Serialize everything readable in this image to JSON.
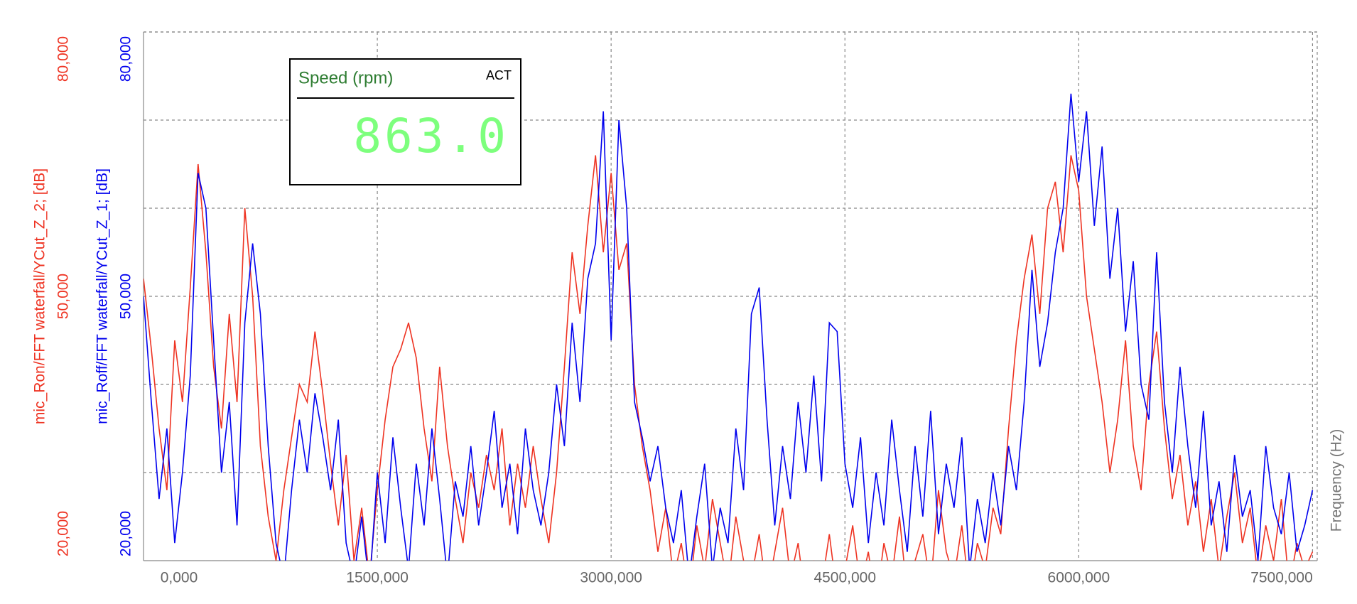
{
  "chart_data": {
    "type": "line",
    "xlabel": "Frequency (Hz)",
    "ylabel": "mic_Roff/FFT waterfall/YCut_Z_1; [dB]",
    "y2label": "mic_Ron/FFT waterfall/YCut_Z_2; [dB]",
    "xlim": [
      0,
      7530
    ],
    "xticks": [
      {
        "value": 0,
        "label": "0,000"
      },
      {
        "value": 1500,
        "label": "1500,000"
      },
      {
        "value": 3000,
        "label": "3000,000"
      },
      {
        "value": 4500,
        "label": "4500,000"
      },
      {
        "value": 6000,
        "label": "6000,000"
      },
      {
        "value": 7500,
        "label": "7500,000"
      }
    ],
    "ylim": [
      20,
      80
    ],
    "yticks": [
      {
        "value": 20,
        "label": "20,000"
      },
      {
        "value": 50,
        "label": "50,000"
      },
      {
        "value": 80,
        "label": "80,000"
      }
    ],
    "y2lim": [
      20,
      80
    ],
    "y2ticks": [
      {
        "value": 20,
        "label": "20,000"
      },
      {
        "value": 50,
        "label": "50,000"
      },
      {
        "value": 80,
        "label": "80,000"
      }
    ],
    "ygrid": [
      20,
      30,
      40,
      50,
      60,
      70,
      80
    ],
    "grid": true,
    "ycolor": "#0000ee",
    "y2color": "#ee3322",
    "x": [
      0,
      50,
      100,
      150,
      200,
      250,
      300,
      350,
      400,
      450,
      500,
      550,
      600,
      650,
      700,
      750,
      800,
      850,
      900,
      950,
      1000,
      1050,
      1100,
      1150,
      1200,
      1250,
      1300,
      1350,
      1400,
      1450,
      1500,
      1550,
      1600,
      1650,
      1700,
      1750,
      1800,
      1850,
      1900,
      1950,
      2000,
      2050,
      2100,
      2150,
      2200,
      2250,
      2300,
      2350,
      2400,
      2450,
      2500,
      2550,
      2600,
      2650,
      2700,
      2750,
      2800,
      2850,
      2900,
      2950,
      3000,
      3050,
      3100,
      3150,
      3200,
      3250,
      3300,
      3350,
      3400,
      3450,
      3500,
      3550,
      3600,
      3650,
      3700,
      3750,
      3800,
      3850,
      3900,
      3950,
      4000,
      4050,
      4100,
      4150,
      4200,
      4250,
      4300,
      4350,
      4400,
      4450,
      4500,
      4550,
      4600,
      4650,
      4700,
      4750,
      4800,
      4850,
      4900,
      4950,
      5000,
      5050,
      5100,
      5150,
      5200,
      5250,
      5300,
      5350,
      5400,
      5450,
      5500,
      5550,
      5600,
      5650,
      5700,
      5750,
      5800,
      5850,
      5900,
      5950,
      6000,
      6050,
      6100,
      6150,
      6200,
      6250,
      6300,
      6350,
      6400,
      6450,
      6500,
      6550,
      6600,
      6650,
      6700,
      6750,
      6800,
      6850,
      6900,
      6950,
      7000,
      7050,
      7100,
      7150,
      7200,
      7250,
      7300,
      7350,
      7400,
      7450,
      7500
    ],
    "series": [
      {
        "color": "#ee3322",
        "axis": "y2",
        "values": [
          52,
          44,
          35,
          28,
          45,
          38,
          51,
          65,
          55,
          42,
          35,
          48,
          38,
          60,
          50,
          33,
          25,
          20,
          28,
          34,
          40,
          38,
          46,
          39,
          31,
          24,
          32,
          20,
          26,
          18,
          28,
          36,
          42,
          44,
          47,
          43,
          35,
          29,
          42,
          33,
          27,
          22,
          30,
          26,
          32,
          28,
          35,
          24,
          31,
          26,
          33,
          27,
          22,
          30,
          42,
          55,
          48,
          58,
          66,
          55,
          64,
          53,
          56,
          40,
          33,
          28,
          21,
          26,
          18,
          22,
          16,
          24,
          19,
          27,
          22,
          17,
          25,
          20,
          18,
          23,
          16,
          21,
          26,
          18,
          22,
          15,
          20,
          17,
          23,
          16,
          19,
          24,
          17,
          21,
          15,
          22,
          18,
          25,
          16,
          20,
          23,
          17,
          28,
          21,
          18,
          24,
          16,
          22,
          19,
          26,
          23,
          35,
          45,
          52,
          57,
          48,
          60,
          63,
          55,
          66,
          62,
          50,
          44,
          38,
          30,
          36,
          45,
          33,
          28,
          40,
          46,
          35,
          27,
          32,
          24,
          29,
          21,
          27,
          19,
          25,
          30,
          22,
          26,
          18,
          24,
          20,
          27,
          17,
          22,
          19,
          21
        ]
      },
      {
        "color": "#0000ee",
        "axis": "y",
        "values": [
          50,
          38,
          27,
          35,
          22,
          30,
          41,
          64,
          60,
          45,
          30,
          38,
          24,
          47,
          56,
          48,
          33,
          22,
          18,
          28,
          36,
          30,
          39,
          34,
          28,
          36,
          22,
          18,
          25,
          17,
          30,
          22,
          34,
          26,
          19,
          31,
          24,
          35,
          27,
          18,
          29,
          25,
          33,
          24,
          30,
          37,
          26,
          31,
          23,
          35,
          28,
          24,
          30,
          40,
          33,
          47,
          38,
          52,
          56,
          71,
          45,
          70,
          60,
          38,
          34,
          29,
          33,
          26,
          22,
          28,
          18,
          25,
          31,
          19,
          26,
          22,
          35,
          28,
          48,
          51,
          36,
          24,
          33,
          27,
          38,
          30,
          41,
          29,
          47,
          46,
          31,
          26,
          34,
          22,
          30,
          24,
          36,
          28,
          21,
          33,
          25,
          37,
          23,
          31,
          26,
          34,
          19,
          27,
          22,
          30,
          24,
          33,
          28,
          38,
          53,
          42,
          47,
          55,
          60,
          73,
          63,
          71,
          58,
          67,
          52,
          60,
          46,
          54,
          40,
          36,
          55,
          38,
          30,
          42,
          33,
          26,
          37,
          24,
          29,
          21,
          32,
          25,
          28,
          20,
          33,
          26,
          23,
          30,
          21,
          24,
          28
        ]
      }
    ],
    "indicator": {
      "title": "Speed (rpm)",
      "status": "ACT",
      "display": "863.0"
    }
  }
}
